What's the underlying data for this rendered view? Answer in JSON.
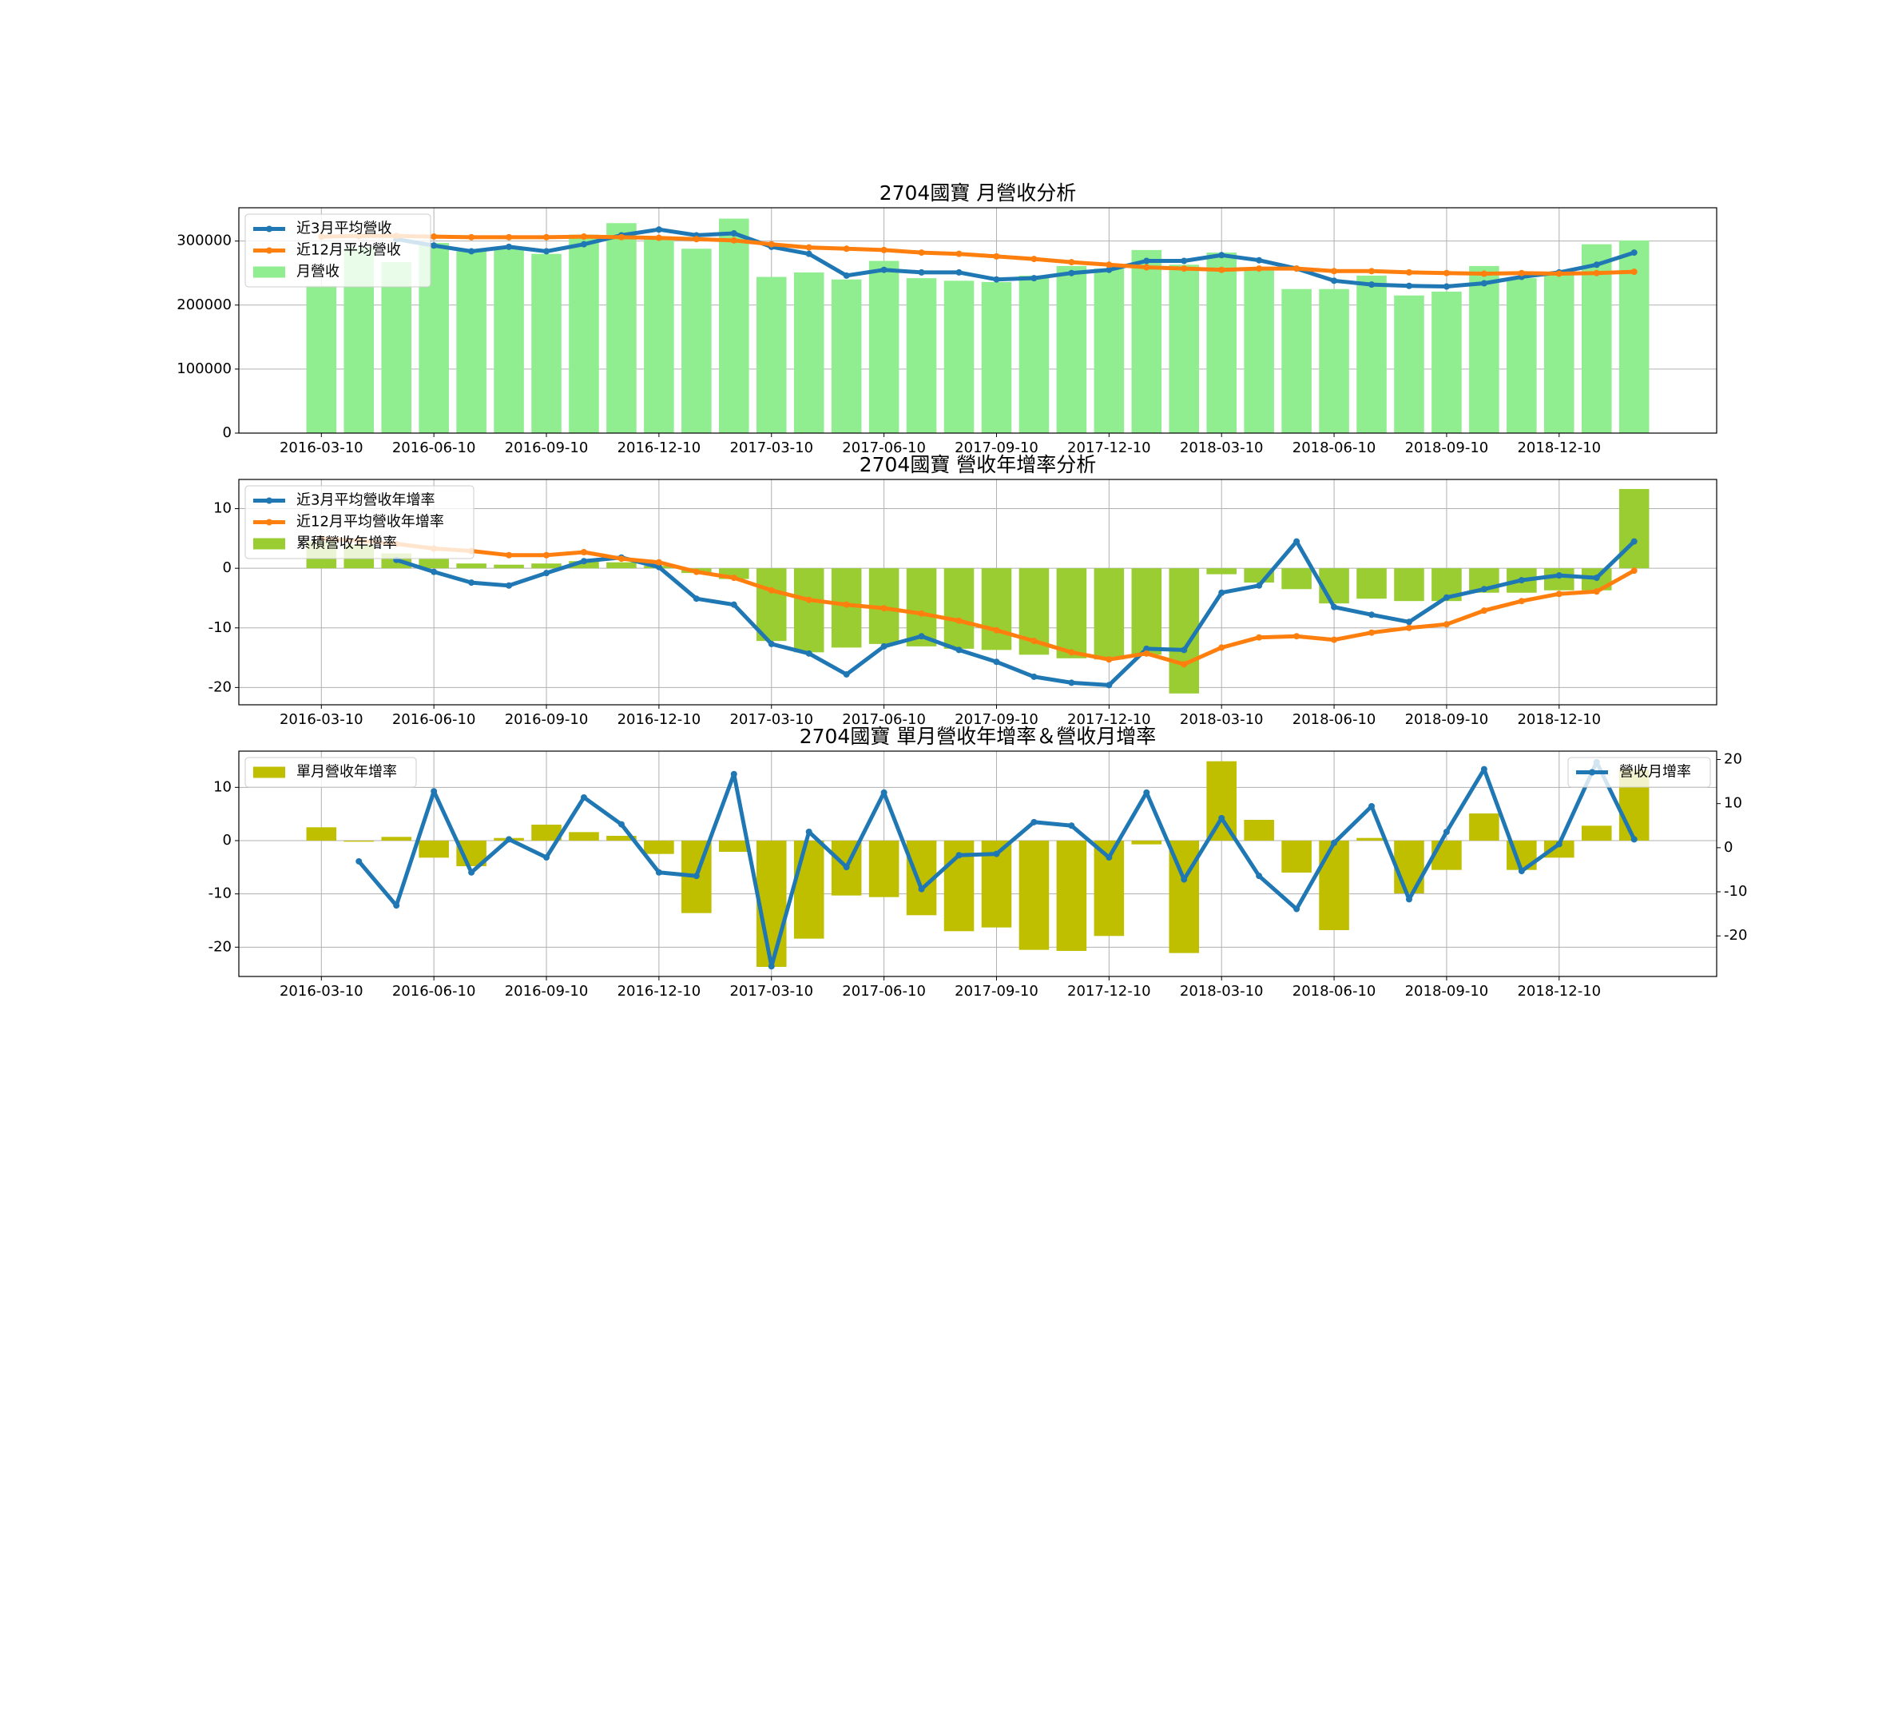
{
  "chart_data": [
    {
      "type": "combo",
      "title": "2704國寶 月營收分析",
      "grid": true,
      "legend": "upper left",
      "categories": [
        "2016-03-10",
        null,
        null,
        "2016-06-10",
        null,
        null,
        "2016-09-10",
        null,
        null,
        "2016-12-10",
        null,
        null,
        "2017-03-10",
        null,
        null,
        "2017-06-10",
        null,
        null,
        "2017-09-10",
        null,
        null,
        "2017-12-10",
        null,
        null,
        "2018-03-10",
        null,
        null,
        "2018-06-10",
        null,
        null,
        "2018-09-10",
        null,
        null,
        "2018-12-10",
        null,
        null
      ],
      "ylim": [
        0,
        352000
      ],
      "yticks": [
        0,
        100000,
        200000,
        300000
      ],
      "series": [
        {
          "name": "近3月平均營收",
          "kind": "line",
          "color": "#1f77b4",
          "values": [
            null,
            null,
            303000,
            293000,
            284000,
            291000,
            284000,
            295000,
            309000,
            318000,
            309000,
            312000,
            291000,
            280000,
            246000,
            255000,
            251000,
            251000,
            240000,
            242000,
            250000,
            255000,
            269000,
            269000,
            278000,
            270000,
            257000,
            238000,
            232000,
            230000,
            229000,
            234000,
            244000,
            251000,
            263000,
            282000
          ]
        },
        {
          "name": "近12月平均營收",
          "kind": "line",
          "color": "#ff7f0e",
          "values": [
            307000,
            308000,
            308000,
            307000,
            306000,
            306000,
            306000,
            307000,
            306000,
            305000,
            303000,
            301000,
            295000,
            290000,
            288000,
            286000,
            282000,
            280000,
            276000,
            272000,
            267000,
            263000,
            259000,
            257000,
            255000,
            257000,
            257000,
            253000,
            253000,
            251000,
            250000,
            249000,
            250000,
            249000,
            250000,
            252000
          ]
        },
        {
          "name": "月營收",
          "kind": "bar",
          "color": "#90ee90",
          "values": [
            230000,
            290000,
            267000,
            297000,
            284000,
            291000,
            280000,
            310000,
            328000,
            305000,
            288000,
            335000,
            244000,
            251000,
            240000,
            269000,
            242000,
            238000,
            236000,
            246000,
            261000,
            257000,
            286000,
            263000,
            282000,
            259000,
            225000,
            225000,
            246000,
            215000,
            221000,
            261000,
            242000,
            248000,
            295000,
            301000
          ]
        }
      ]
    },
    {
      "type": "combo",
      "title": "2704國寶 營收年增率分析",
      "grid": true,
      "legend": "upper left",
      "categories": [
        "2016-03-10",
        null,
        null,
        "2016-06-10",
        null,
        null,
        "2016-09-10",
        null,
        null,
        "2016-12-10",
        null,
        null,
        "2017-03-10",
        null,
        null,
        "2017-06-10",
        null,
        null,
        "2017-09-10",
        null,
        null,
        "2017-12-10",
        null,
        null,
        "2018-03-10",
        null,
        null,
        "2018-06-10",
        null,
        null,
        "2018-09-10",
        null,
        null,
        "2018-12-10",
        null,
        null
      ],
      "ylim": [
        -22.9,
        14.9
      ],
      "yticks": [
        -20,
        -10,
        0,
        10
      ],
      "series": [
        {
          "name": "近3月平均營收年增率",
          "kind": "line",
          "color": "#1f77b4",
          "values": [
            null,
            null,
            1.4,
            -0.6,
            -2.4,
            -2.9,
            -0.8,
            1.2,
            1.8,
            0.2,
            -5.1,
            -6.1,
            -12.7,
            -14.3,
            -17.8,
            -13.1,
            -11.4,
            -13.7,
            -15.7,
            -18.2,
            -19.2,
            -19.6,
            -13.5,
            -13.7,
            -4.1,
            -2.9,
            4.5,
            -6.5,
            -7.8,
            -9.0,
            -4.9,
            -3.5,
            -2.0,
            -1.2,
            -1.6,
            4.5
          ]
        },
        {
          "name": "近12月平均營收年增率",
          "kind": "line",
          "color": "#ff7f0e",
          "values": [
            5.0,
            4.6,
            4.1,
            3.3,
            2.9,
            2.2,
            2.2,
            2.7,
            1.6,
            1.0,
            -0.6,
            -1.6,
            -3.7,
            -5.3,
            -6.1,
            -6.7,
            -7.6,
            -8.8,
            -10.4,
            -12.2,
            -14.1,
            -15.3,
            -14.3,
            -16.1,
            -13.3,
            -11.6,
            -11.4,
            -12.0,
            -10.8,
            -10.0,
            -9.4,
            -7.1,
            -5.5,
            -4.3,
            -3.9,
            -0.4
          ]
        },
        {
          "name": "累積營收年增率",
          "kind": "bar",
          "color": "#9acd32",
          "values": [
            4.5,
            4.0,
            2.5,
            1.6,
            0.8,
            0.6,
            0.8,
            1.2,
            1.0,
            0.4,
            -0.8,
            -1.8,
            -12.2,
            -14.1,
            -13.3,
            -12.7,
            -13.1,
            -13.5,
            -13.7,
            -14.5,
            -15.1,
            -15.3,
            -14.5,
            -21.0,
            -1.0,
            -2.4,
            -3.5,
            -5.9,
            -5.1,
            -5.5,
            -5.5,
            -4.1,
            -4.1,
            -3.7,
            -3.7,
            13.3
          ]
        }
      ]
    },
    {
      "type": "combo",
      "title": "2704國寶 單月營收年增率＆營收月增率",
      "grid": true,
      "legend": "upper left",
      "legend2": "upper right",
      "categories": [
        "2016-03-10",
        null,
        null,
        "2016-06-10",
        null,
        null,
        "2016-09-10",
        null,
        null,
        "2016-12-10",
        null,
        null,
        "2017-03-10",
        null,
        null,
        "2017-06-10",
        null,
        null,
        "2017-09-10",
        null,
        null,
        "2017-12-10",
        null,
        null,
        "2018-03-10",
        null,
        null,
        "2018-06-10",
        null,
        null,
        "2018-09-10",
        null,
        null,
        "2018-12-10",
        null,
        null
      ],
      "ylim": [
        -25.5,
        16.8
      ],
      "yticks": [
        -20,
        -10,
        0,
        10
      ],
      "y2lim": [
        -29.2,
        21.9
      ],
      "y2ticks": [
        -20,
        -10,
        0,
        10,
        20
      ],
      "series": [
        {
          "name": "單月營收年增率",
          "kind": "bar",
          "color": "#bfbf00",
          "values": [
            2.5,
            -0.2,
            0.7,
            -3.2,
            -4.8,
            0.5,
            3.0,
            1.6,
            0.9,
            -2.5,
            -13.6,
            -2.1,
            -23.7,
            -18.4,
            -10.3,
            -10.6,
            -14.0,
            -17.0,
            -16.3,
            -20.5,
            -20.7,
            -17.9,
            -0.7,
            -21.1,
            14.9,
            3.9,
            -6.0,
            -16.8,
            0.5,
            -9.9,
            -5.5,
            5.1,
            -5.5,
            -3.2,
            2.8,
            13.3
          ]
        },
        {
          "name": "營收月增率",
          "kind": "line",
          "axis": "y2",
          "color": "#1f77b4",
          "values": [
            null,
            -3.1,
            -13.1,
            12.8,
            -5.6,
            1.9,
            -2.2,
            11.4,
            5.3,
            -5.6,
            -6.4,
            16.7,
            -26.9,
            3.6,
            -4.4,
            12.5,
            -9.4,
            -1.7,
            -1.4,
            5.8,
            5.0,
            -2.2,
            12.5,
            -7.2,
            6.7,
            -6.4,
            -13.9,
            1.1,
            9.4,
            -11.7,
            3.6,
            17.8,
            -5.3,
            0.8,
            19.4,
            1.9
          ]
        }
      ]
    }
  ]
}
